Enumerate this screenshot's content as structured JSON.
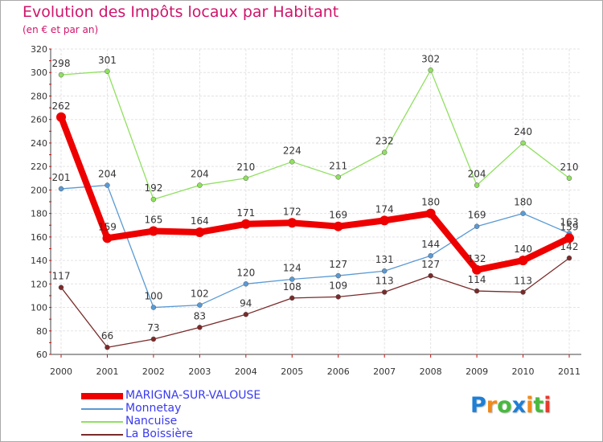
{
  "header": {
    "title": "Evolution des Impôts locaux par Habitant",
    "subtitle": "(en € et par an)"
  },
  "logo": {
    "letters": [
      "P",
      "r",
      "o",
      "x",
      "i",
      "t",
      "i"
    ],
    "colors": [
      "#1e7fd6",
      "#f08a1c",
      "#49b93f",
      "#1e7fd6",
      "#f08a1c",
      "#49b93f",
      "#e73a2c"
    ]
  },
  "chart_data": {
    "type": "line",
    "title": "Evolution des Impôts locaux par Habitant",
    "subtitle": "(en € et par an)",
    "xlabel": "",
    "ylabel": "",
    "x": [
      "2000",
      "2001",
      "2002",
      "2003",
      "2004",
      "2005",
      "2006",
      "2007",
      "2008",
      "2009",
      "2010",
      "2011"
    ],
    "ylim": [
      60,
      320
    ],
    "yticks": [
      60,
      80,
      100,
      120,
      140,
      160,
      180,
      200,
      220,
      240,
      260,
      280,
      300,
      320
    ],
    "grid": true,
    "legend_position": "bottom-left",
    "series": [
      {
        "name": "Nancuise",
        "color": "#90e060",
        "values": [
          298,
          301,
          192,
          204,
          210,
          224,
          211,
          232,
          302,
          204,
          240,
          210
        ]
      },
      {
        "name": "Monnetay",
        "color": "#5a9ad4",
        "values": [
          201,
          204,
          100,
          102,
          120,
          124,
          127,
          131,
          144,
          169,
          180,
          163
        ]
      },
      {
        "name": "La Boissière",
        "color": "#7a2a2a",
        "values": [
          117,
          66,
          73,
          83,
          94,
          108,
          109,
          113,
          127,
          114,
          113,
          142
        ]
      },
      {
        "name": "MARIGNA-SUR-VALOUSE",
        "color": "#ee0000",
        "values": [
          262,
          159,
          165,
          164,
          171,
          172,
          169,
          174,
          180,
          132,
          140,
          159
        ],
        "bold": true
      }
    ],
    "legend_order": [
      "MARIGNA-SUR-VALOUSE",
      "Monnetay",
      "Nancuise",
      "La Boissière"
    ]
  }
}
